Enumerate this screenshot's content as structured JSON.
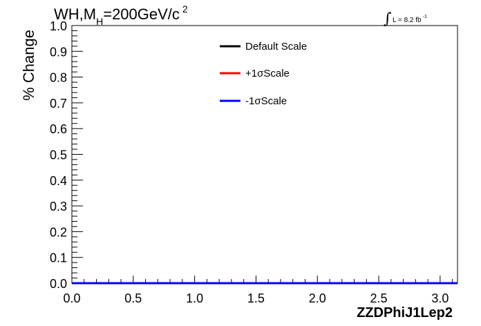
{
  "title": {
    "main": "WH,M",
    "sub": "H",
    "rest": "=200GeV/c",
    "sup": "2"
  },
  "lumi": {
    "integral": "∫",
    "label": "L = 8.2 fb",
    "sup": "-1"
  },
  "chart_data": {
    "type": "line",
    "xlabel": "ZZDPhiJ1Lep2",
    "ylabel": "% Change",
    "xlim": [
      0,
      3.14159
    ],
    "ylim": [
      0,
      1.0
    ],
    "x_ticks": [
      "0.0",
      "0.5",
      "1.0",
      "1.5",
      "2.0",
      "2.5",
      "3.0"
    ],
    "y_ticks": [
      "0.0",
      "0.1",
      "0.2",
      "0.3",
      "0.4",
      "0.5",
      "0.6",
      "0.7",
      "0.8",
      "0.9",
      "1.0"
    ],
    "grid": false,
    "legend_position": "top-center",
    "series": [
      {
        "name": "Default Scale",
        "color": "#000000",
        "x": [
          0,
          3.14159
        ],
        "values": [
          0,
          0
        ]
      },
      {
        "name": "+1σScale",
        "color": "#ff0000",
        "x": [
          0,
          3.14159
        ],
        "values": [
          0,
          0
        ]
      },
      {
        "name": "-1σScale",
        "color": "#0000ff",
        "x": [
          0,
          3.14159
        ],
        "values": [
          0,
          0
        ]
      }
    ]
  }
}
